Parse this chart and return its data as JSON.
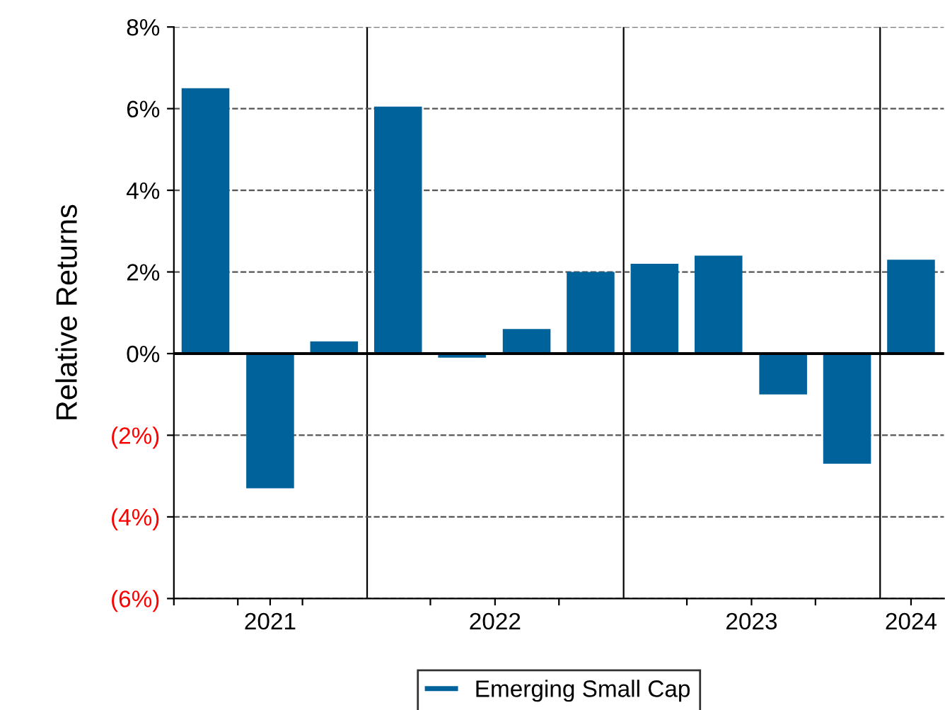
{
  "chart_data": {
    "type": "bar",
    "ylabel": "Relative Returns",
    "x": [
      "2021-05-16",
      "2021-08-16",
      "2021-11-15",
      "2022-02-14",
      "2022-05-16",
      "2022-08-16",
      "2022-11-15",
      "2023-02-14",
      "2023-05-16",
      "2023-08-16",
      "2023-11-15",
      "2024-02-14"
    ],
    "series": [
      {
        "name": "Emerging Small Cap",
        "color": "#00629b",
        "values": [
          6.5,
          -3.3,
          0.3,
          6.05,
          -0.1,
          0.6,
          2.0,
          2.2,
          2.4,
          -1.0,
          -2.7,
          2.3
        ]
      }
    ],
    "xlim": [
      "2021-04-01",
      "2024-04-01"
    ],
    "xticks": [
      {
        "value": "2021-04-01",
        "label": null
      },
      {
        "value": "2021-07-01",
        "label": null
      },
      {
        "value": "2021-08-16",
        "label": "2021"
      },
      {
        "value": "2021-10-01",
        "label": null
      },
      {
        "value": "2022-04-01",
        "label": null
      },
      {
        "value": "2022-07-02",
        "label": "2022"
      },
      {
        "value": "2022-10-01",
        "label": null
      },
      {
        "value": "2023-04-01",
        "label": null
      },
      {
        "value": "2023-07-02",
        "label": "2023"
      },
      {
        "value": "2023-10-01",
        "label": null
      },
      {
        "value": "2024-02-14",
        "label": "2024"
      }
    ],
    "ylim": [
      -6,
      8
    ],
    "yticks": [
      {
        "value": -6,
        "label": "(6%)"
      },
      {
        "value": -4,
        "label": "(4%)"
      },
      {
        "value": -2,
        "label": "(2%)"
      },
      {
        "value": 0,
        "label": "0%"
      },
      {
        "value": 2,
        "label": "2%"
      },
      {
        "value": 4,
        "label": "4%"
      },
      {
        "value": 6,
        "label": "6%"
      },
      {
        "value": 8,
        "label": "8%"
      }
    ],
    "grid": "y",
    "ref_lines": [
      {
        "axis": "y",
        "value": 0,
        "label": null,
        "color": "#000000",
        "line_style": "solid"
      },
      {
        "axis": "x",
        "value": "2022-01-01",
        "label": null,
        "color": "#000000",
        "line_style": "solid"
      },
      {
        "axis": "x",
        "value": "2023-01-01",
        "label": null,
        "color": "#000000",
        "line_style": "solid"
      },
      {
        "axis": "x",
        "value": "2024-01-01",
        "label": null,
        "color": "#000000",
        "line_style": "solid"
      }
    ],
    "legend": "bottom"
  }
}
